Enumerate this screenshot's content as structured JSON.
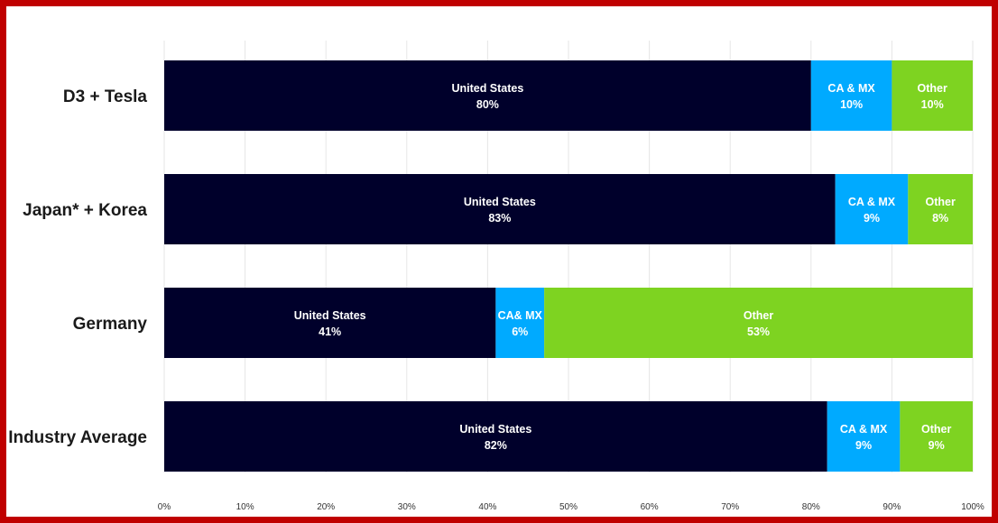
{
  "chart_data": {
    "type": "bar",
    "orientation": "horizontal",
    "stacked": true,
    "categories": [
      "D3 + Tesla",
      "Japan* + Korea",
      "Germany",
      "Industry Average"
    ],
    "series": [
      {
        "name": "United States",
        "color": "#00002b",
        "values": [
          80,
          83,
          41,
          82
        ],
        "value_labels": [
          "80%",
          "83%",
          "41%",
          "82%"
        ],
        "segment_labels": [
          "United States",
          "United States",
          "United States",
          "United States"
        ]
      },
      {
        "name": "CA & MX",
        "color": "#00aaff",
        "values": [
          10,
          9,
          6,
          9
        ],
        "value_labels": [
          "10%",
          "9%",
          "6%",
          "9%"
        ],
        "segment_labels": [
          "CA & MX",
          "CA & MX",
          "CA& MX",
          "CA & MX"
        ]
      },
      {
        "name": "Other",
        "color": "#7ed321",
        "values": [
          10,
          8,
          53,
          9
        ],
        "value_labels": [
          "10%",
          "8%",
          "53%",
          "9%"
        ],
        "segment_labels": [
          "Other",
          "Other",
          "Other",
          "Other"
        ]
      }
    ],
    "xlim": [
      0,
      100
    ],
    "xticks": [
      "0%",
      "10%",
      "20%",
      "30%",
      "40%",
      "50%",
      "60%",
      "70%",
      "80%",
      "90%",
      "100%"
    ],
    "grid": true,
    "legend": "none",
    "title": "",
    "xlabel": "",
    "ylabel": ""
  }
}
